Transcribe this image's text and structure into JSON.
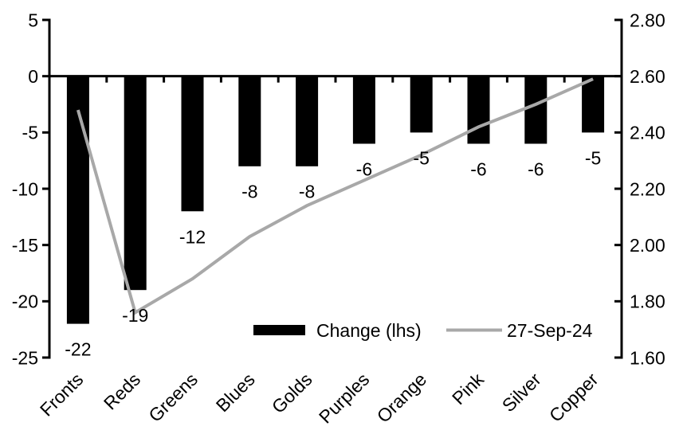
{
  "chart_data": {
    "type": "bar",
    "subtype": "combo-bar-line-dual-axis",
    "title": "",
    "xlabel": "",
    "ylabel_left": "",
    "ylabel_right": "",
    "grid": false,
    "legend_position": "bottom-center-inside",
    "categories": [
      "Fronts",
      "Reds",
      "Greens",
      "Blues",
      "Golds",
      "Purples",
      "Orange",
      "Pink",
      "Silver",
      "Copper"
    ],
    "series": [
      {
        "name": "Change (lhs)",
        "type": "bar",
        "axis": "left",
        "color": "#000000",
        "values": [
          -22,
          -19,
          -12,
          -8,
          -8,
          -6,
          -5,
          -6,
          -6,
          -5
        ],
        "data_labels": [
          "-22",
          "-19",
          "-12",
          "-8",
          "-8",
          "-6",
          "-5",
          "-6",
          "-6",
          "-5"
        ]
      },
      {
        "name": "27-Sep-24",
        "type": "line",
        "axis": "right",
        "color": "#a8a8a8",
        "values": [
          2.48,
          1.76,
          1.88,
          2.03,
          2.14,
          2.23,
          2.32,
          2.42,
          2.5,
          2.59
        ]
      }
    ],
    "left_axis": {
      "min": -25,
      "max": 5,
      "tick_values": [
        5,
        0,
        -5,
        -10,
        -15,
        -20,
        -25
      ],
      "tick_labels": [
        "5",
        "0",
        "-5",
        "-10",
        "-15",
        "-20",
        "-25"
      ]
    },
    "right_axis": {
      "min": 1.6,
      "max": 2.8,
      "tick_values": [
        2.8,
        2.6,
        2.4,
        2.2,
        2.0,
        1.8,
        1.6
      ],
      "tick_labels": [
        "2.80",
        "2.60",
        "2.40",
        "2.20",
        "2.00",
        "1.80",
        "1.60"
      ]
    },
    "legend": [
      {
        "label": "Change (lhs)",
        "swatch": "bar",
        "color": "#000000"
      },
      {
        "label": "27-Sep-24",
        "swatch": "line",
        "color": "#a8a8a8"
      }
    ]
  },
  "colors": {
    "background": "#ffffff",
    "axis": "#000000",
    "text": "#000000",
    "bar": "#000000",
    "line": "#a8a8a8"
  }
}
